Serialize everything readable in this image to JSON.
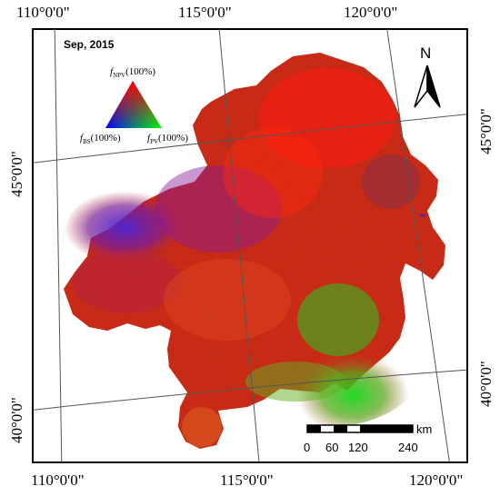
{
  "map": {
    "title": "Sep, 2015",
    "north_arrow_label": "N",
    "longitude_labels": {
      "top": [
        "110°0'0\"",
        "115°0'0\"",
        "120°0'0\""
      ],
      "bottom": [
        "110°0'0\"",
        "115°0'0\"",
        "120°0'0\""
      ]
    },
    "latitude_labels": {
      "left": [
        "45°0'0\"",
        "40°0'0\""
      ],
      "right": [
        "45°0'0\"",
        "40°0'0\""
      ]
    },
    "legend": {
      "top_prefix": "f",
      "top_sub": "NPV",
      "top_suffix": "(100%)",
      "left_prefix": "f",
      "left_sub": "BS",
      "left_suffix": "(100%)",
      "right_prefix": "f",
      "right_sub": "PV",
      "right_suffix": "(100%)",
      "colors": {
        "npv": "#ff0000",
        "bs": "#0000ff",
        "pv": "#00ff00"
      }
    },
    "scale_bar": {
      "unit": "km",
      "ticks": [
        "0",
        "60",
        "120",
        "240"
      ]
    }
  }
}
